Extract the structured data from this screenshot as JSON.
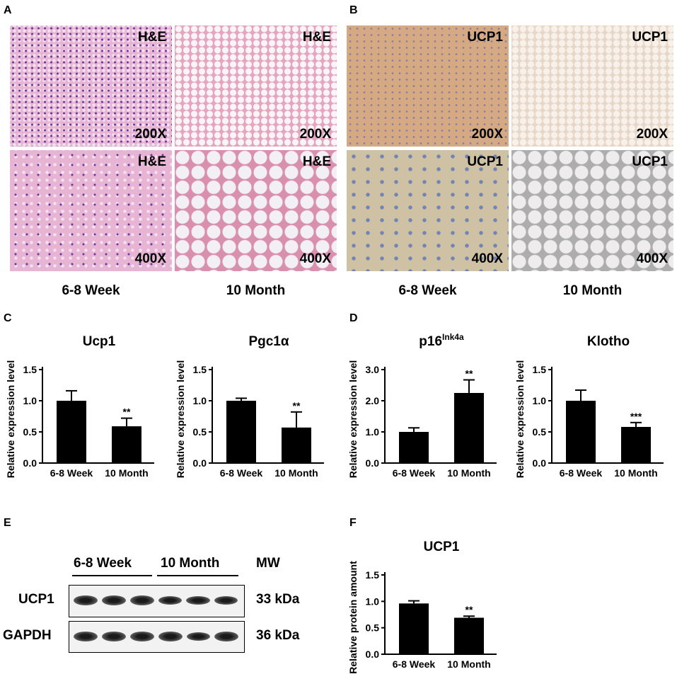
{
  "panels": {
    "A": "A",
    "B": "B",
    "C": "C",
    "D": "D",
    "E": "E",
    "F": "F"
  },
  "micrographs": {
    "he_label": "H&E",
    "ucp1_label": "UCP1",
    "mag_low": "200X",
    "mag_high": "400X",
    "group_young": "6-8 Week",
    "group_old": "10 Month"
  },
  "colors": {
    "bar": "#000000",
    "he_tissue": "#e7b4d3",
    "ucp1_stain": "#d5aa82"
  },
  "chart_data": [
    {
      "panel": "C",
      "type": "bar",
      "title": "Ucp1",
      "title_sup": "",
      "ylabel": "Relative expression level",
      "categories": [
        "6-8 Week",
        "10 Month"
      ],
      "values": [
        1.0,
        0.59
      ],
      "errors": [
        0.16,
        0.13
      ],
      "significance": [
        "",
        "**"
      ],
      "ylim": [
        0,
        1.5
      ],
      "yticks": [
        "0.0",
        "0.5",
        "1.0",
        "1.5"
      ]
    },
    {
      "panel": "C",
      "type": "bar",
      "title": "Pgc1α",
      "title_sup": "",
      "ylabel": "Relative expression level",
      "categories": [
        "6-8 Week",
        "10 Month"
      ],
      "values": [
        1.0,
        0.57
      ],
      "errors": [
        0.04,
        0.25
      ],
      "significance": [
        "",
        "**"
      ],
      "ylim": [
        0,
        1.5
      ],
      "yticks": [
        "0.0",
        "0.5",
        "1.0",
        "1.5"
      ]
    },
    {
      "panel": "D",
      "type": "bar",
      "title": "p16",
      "title_sup": "Ink4a",
      "ylabel": "Relative expression level",
      "categories": [
        "6-8 Week",
        "10 Month"
      ],
      "values": [
        1.0,
        2.25
      ],
      "errors": [
        0.13,
        0.42
      ],
      "significance": [
        "",
        "**"
      ],
      "ylim": [
        0,
        3.0
      ],
      "yticks": [
        "0.0",
        "1.0",
        "2.0",
        "3.0"
      ]
    },
    {
      "panel": "D",
      "type": "bar",
      "title": "Klotho",
      "title_sup": "",
      "ylabel": "Relative expression level",
      "categories": [
        "6-8 Week",
        "10 Month"
      ],
      "values": [
        1.0,
        0.58
      ],
      "errors": [
        0.17,
        0.07
      ],
      "significance": [
        "",
        "***"
      ],
      "ylim": [
        0,
        1.5
      ],
      "yticks": [
        "0.0",
        "0.5",
        "1.0",
        "1.5"
      ]
    },
    {
      "panel": "F",
      "type": "bar",
      "title": "UCP1",
      "title_sup": "",
      "ylabel": "Relative protein amount",
      "categories": [
        "6-8 Week",
        "10 Month"
      ],
      "values": [
        0.96,
        0.69
      ],
      "errors": [
        0.05,
        0.03
      ],
      "significance": [
        "",
        "**"
      ],
      "ylim": [
        0,
        1.5
      ],
      "yticks": [
        "0.0",
        "0.5",
        "1.0",
        "1.5"
      ]
    }
  ],
  "western": {
    "group_young": "6-8 Week",
    "group_old": "10 Month",
    "mw_header": "MW",
    "rows": [
      {
        "protein": "UCP1",
        "mw": "33 kDa"
      },
      {
        "protein": "GAPDH",
        "mw": "36 kDa"
      }
    ]
  }
}
